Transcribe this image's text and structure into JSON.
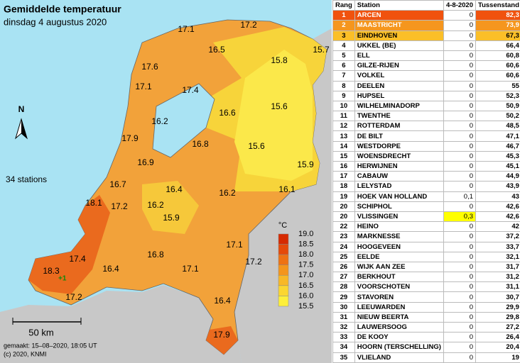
{
  "map": {
    "title": "Gemiddelde temperatuur",
    "subtitle": "dinsdag 4 augustus 2020",
    "station_count": "34 stations",
    "north": "N",
    "scale": "50 km",
    "footer": [
      "gemaakt: 15–08–2020, 18:05 UT",
      "(c) 2020, KNMI"
    ],
    "annotation": "+1",
    "legend_unit": "°C",
    "legend_ticks": [
      "19.0",
      "18.5",
      "18.0",
      "17.5",
      "17.0",
      "16.5",
      "16.0",
      "15.5"
    ],
    "temperatures": [
      17.1,
      17.2,
      15.7,
      17.6,
      16.5,
      15.8,
      17.1,
      17.4,
      16.6,
      15.6,
      16.2,
      17.9,
      16.8,
      15.6,
      15.9,
      16.9,
      16.7,
      16.4,
      16.2,
      16.1,
      18.1,
      17.2,
      16.2,
      15.9,
      17.1,
      17.2,
      16.8,
      17.4,
      16.4,
      17.1,
      18.3,
      17.2,
      16.4,
      17.9
    ]
  },
  "table": {
    "header": [
      "Rang",
      "Station",
      "4-8-2020",
      "Tussenstand"
    ],
    "rows": [
      [
        "1",
        "ARCEN",
        "0",
        "82,3"
      ],
      [
        "2",
        "MAASTRICHT",
        "0",
        "73,9"
      ],
      [
        "3",
        "EINDHOVEN",
        "0",
        "67,3"
      ],
      [
        "4",
        "UKKEL (BE)",
        "0",
        "66,4"
      ],
      [
        "5",
        "ELL",
        "0",
        "60,8"
      ],
      [
        "6",
        "GILZE-RIJEN",
        "0",
        "60,6"
      ],
      [
        "7",
        "VOLKEL",
        "0",
        "60,6"
      ],
      [
        "8",
        "DEELEN",
        "0",
        "55"
      ],
      [
        "9",
        "HUPSEL",
        "0",
        "52,3"
      ],
      [
        "10",
        "WILHELMINADORP",
        "0",
        "50,9"
      ],
      [
        "11",
        "TWENTHE",
        "0",
        "50,2"
      ],
      [
        "12",
        "ROTTERDAM",
        "0",
        "48,5"
      ],
      [
        "13",
        "DE BILT",
        "0",
        "47,1"
      ],
      [
        "14",
        "WESTDORPE",
        "0",
        "46,7"
      ],
      [
        "15",
        "WOENSDRECHT",
        "0",
        "45,3"
      ],
      [
        "16",
        "HERWIJNEN",
        "0",
        "45,1"
      ],
      [
        "17",
        "CABAUW",
        "0",
        "44,9"
      ],
      [
        "18",
        "LELYSTAD",
        "0",
        "43,9"
      ],
      [
        "19",
        "HOEK VAN HOLLAND",
        "0,1",
        "43"
      ],
      [
        "20",
        "SCHIPHOL",
        "0",
        "42,6"
      ],
      [
        "20",
        "VLISSINGEN",
        "0,3",
        "42,6"
      ],
      [
        "22",
        "HEINO",
        "0",
        "42"
      ],
      [
        "23",
        "MARKNESSE",
        "0",
        "37,2"
      ],
      [
        "24",
        "HOOGEVEEN",
        "0",
        "33,7"
      ],
      [
        "25",
        "EELDE",
        "0",
        "32,1"
      ],
      [
        "26",
        "WIJK AAN ZEE",
        "0",
        "31,7"
      ],
      [
        "27",
        "BERKHOUT",
        "0",
        "31,2"
      ],
      [
        "28",
        "VOORSCHOTEN",
        "0",
        "31,1"
      ],
      [
        "29",
        "STAVOREN",
        "0",
        "30,7"
      ],
      [
        "30",
        "LEEUWARDEN",
        "0",
        "29,9"
      ],
      [
        "31",
        "NIEUW BEERTA",
        "0",
        "29,8"
      ],
      [
        "32",
        "LAUWERSOOG",
        "0",
        "27,2"
      ],
      [
        "33",
        "DE KOOY",
        "0",
        "26,4"
      ],
      [
        "34",
        "HOORN (TERSCHELLING)",
        "0",
        "20,4"
      ],
      [
        "35",
        "VLIELAND",
        "0",
        "19"
      ]
    ]
  }
}
